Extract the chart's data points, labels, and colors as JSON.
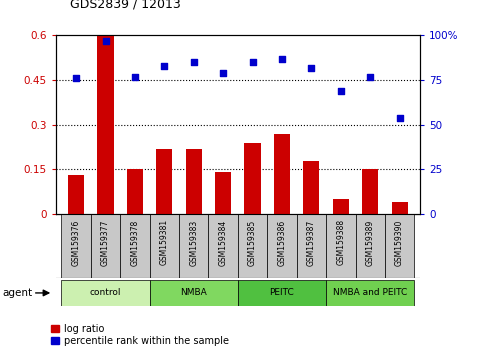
{
  "title": "GDS2839 / 12013",
  "samples": [
    "GSM159376",
    "GSM159377",
    "GSM159378",
    "GSM159381",
    "GSM159383",
    "GSM159384",
    "GSM159385",
    "GSM159386",
    "GSM159387",
    "GSM159388",
    "GSM159389",
    "GSM159390"
  ],
  "log_ratio": [
    0.13,
    0.6,
    0.15,
    0.22,
    0.22,
    0.14,
    0.24,
    0.27,
    0.18,
    0.05,
    0.15,
    0.04
  ],
  "percentile_rank": [
    76,
    97,
    77,
    83,
    85,
    79,
    85,
    87,
    82,
    69,
    77,
    54
  ],
  "groups": [
    {
      "label": "control",
      "start": 0,
      "end": 3,
      "color": "#ccf0b0"
    },
    {
      "label": "NMBA",
      "start": 3,
      "end": 6,
      "color": "#80d860"
    },
    {
      "label": "PEITC",
      "start": 6,
      "end": 9,
      "color": "#50c040"
    },
    {
      "label": "NMBA and PEITC",
      "start": 9,
      "end": 12,
      "color": "#70d050"
    }
  ],
  "bar_color": "#cc0000",
  "dot_color": "#0000cc",
  "yticks_left": [
    0,
    0.15,
    0.3,
    0.45,
    0.6
  ],
  "ytick_labels_left": [
    "0",
    "0.15",
    "0.3",
    "0.45",
    "0.6"
  ],
  "yticks_right": [
    0,
    25,
    50,
    75,
    100
  ],
  "ytick_labels_right": [
    "0",
    "25",
    "50",
    "75",
    "100%"
  ],
  "agent_label": "agent",
  "legend_bar": "log ratio",
  "legend_dot": "percentile rank within the sample",
  "left_tick_color": "#cc0000",
  "right_tick_color": "#0000cc",
  "label_box_color": "#c8c8c8",
  "gridline_color": "#000000"
}
